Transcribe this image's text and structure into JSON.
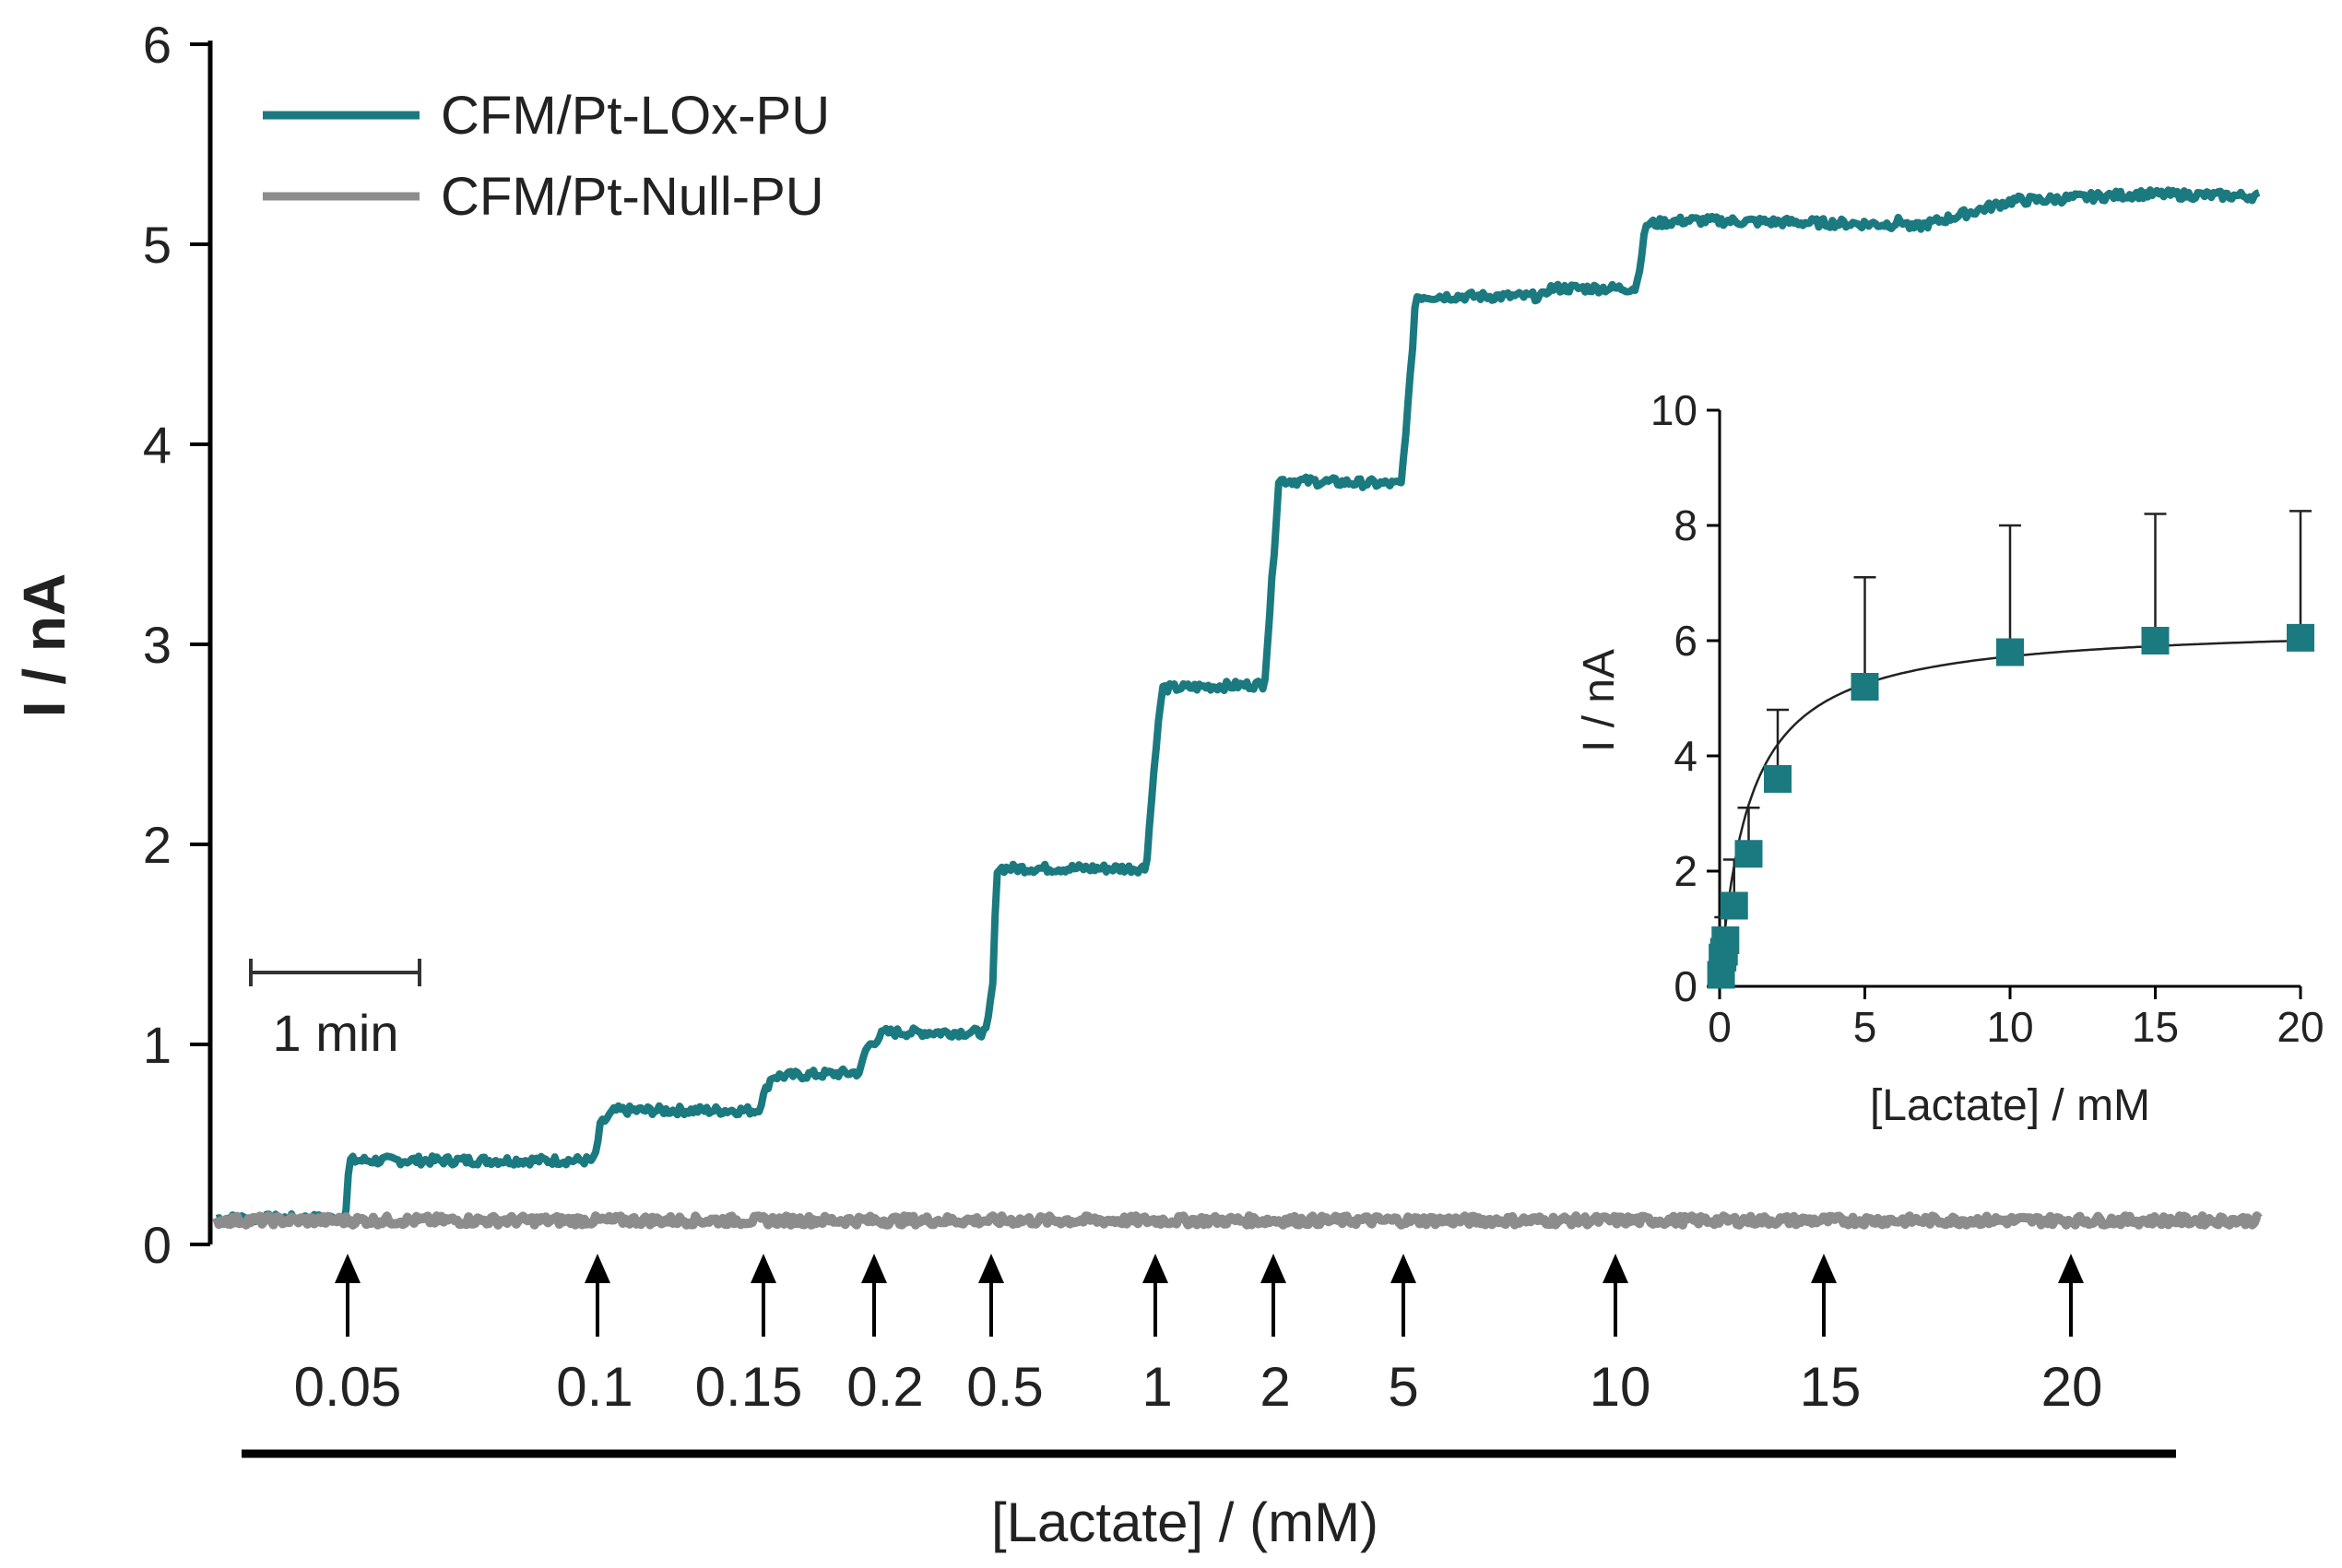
{
  "chart_data": [
    {
      "type": "line",
      "title": "",
      "ylabel": "I / nA",
      "xlabel": "[Lactate] / (mM)",
      "ylim": [
        0,
        6
      ],
      "yticks": [
        0,
        1,
        2,
        3,
        4,
        5,
        6
      ],
      "scale_bar": "1 min",
      "additions": [
        "0.05",
        "0.1",
        "0.15",
        "0.2",
        "0.5",
        "1",
        "2",
        "5",
        "10",
        "15",
        "20"
      ],
      "series": [
        {
          "name": "CFM/Pt-LOx-PU",
          "color": "#1a7a80",
          "x": [
            0,
            0.045,
            0.063,
            0.065,
            0.185,
            0.188,
            0.195,
            0.265,
            0.27,
            0.272,
            0.315,
            0.318,
            0.327,
            0.377,
            0.38,
            0.382,
            0.455,
            0.46,
            0.463,
            0.513,
            0.518,
            0.52,
            0.58,
            0.585,
            0.587,
            0.645,
            0.65,
            0.652,
            0.695,
            0.7,
            0.72,
            0.82,
            0.825,
            0.83,
            0.88,
            0.89,
            0.94,
            0.95,
            1.0
          ],
          "y": [
            0.13,
            0.13,
            0.13,
            0.42,
            0.42,
            0.6,
            0.67,
            0.67,
            0.8,
            0.84,
            0.86,
            0.98,
            1.06,
            1.06,
            1.3,
            1.88,
            1.88,
            2.5,
            2.78,
            2.8,
            3.5,
            3.82,
            3.8,
            4.4,
            4.74,
            4.74,
            4.74,
            4.78,
            4.78,
            5.1,
            5.12,
            5.1,
            5.12,
            5.08,
            5.22,
            5.22,
            5.25,
            5.25,
            5.24
          ]
        },
        {
          "name": "CFM/Pt-Null-PU",
          "color": "#8c8c8c",
          "x": [
            0,
            1.0
          ],
          "y": [
            0.12,
            0.12
          ]
        }
      ]
    },
    {
      "type": "scatter",
      "title": "inset",
      "xlabel": "[Lactate] / mM",
      "ylabel": "I / nA",
      "xlim": [
        0,
        20
      ],
      "ylim": [
        0,
        10
      ],
      "xticks": [
        0,
        5,
        10,
        15,
        20
      ],
      "yticks": [
        0,
        2,
        4,
        6,
        8,
        10
      ],
      "points": {
        "x": [
          0.05,
          0.1,
          0.15,
          0.2,
          0.5,
          1,
          2,
          5,
          10,
          15,
          20
        ],
        "y": [
          0.2,
          0.5,
          0.6,
          0.8,
          1.4,
          2.3,
          3.6,
          5.2,
          5.8,
          6.0,
          6.05
        ],
        "err": [
          0.1,
          0.2,
          0.3,
          0.4,
          0.8,
          0.8,
          1.2,
          1.9,
          2.2,
          2.2,
          2.2
        ]
      },
      "fit": {
        "vmax": 6.3,
        "km": 1.0
      }
    }
  ]
}
